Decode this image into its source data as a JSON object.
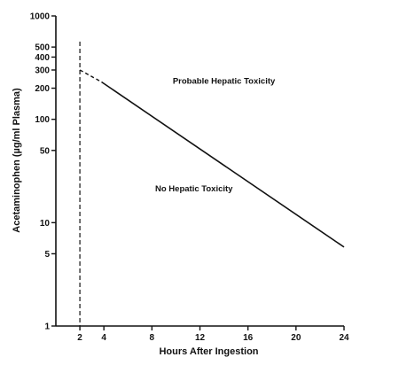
{
  "chart_data": {
    "type": "line",
    "xlabel": "Hours After Ingestion",
    "ylabel": "Acetaminophen (µg/ml Plasma)",
    "y_scale": "log",
    "xlim": [
      0,
      24
    ],
    "ylim": [
      1,
      1000
    ],
    "x_ticks": [
      {
        "value": 2,
        "label": "2"
      },
      {
        "value": 4,
        "label": "4"
      },
      {
        "value": 8,
        "label": "8"
      },
      {
        "value": 12,
        "label": "12"
      },
      {
        "value": 16,
        "label": "16"
      },
      {
        "value": 20,
        "label": "20"
      },
      {
        "value": 24,
        "label": "24"
      }
    ],
    "y_ticks": [
      {
        "value": 1,
        "label": "1"
      },
      {
        "value": 5,
        "label": "5"
      },
      {
        "value": 10,
        "label": "10"
      },
      {
        "value": 50,
        "label": "50"
      },
      {
        "value": 100,
        "label": "100"
      },
      {
        "value": 200,
        "label": "200"
      },
      {
        "value": 300,
        "label": "300"
      },
      {
        "value": 400,
        "label": "400"
      },
      {
        "value": 500,
        "label": "500"
      },
      {
        "value": 1000,
        "label": "1000"
      }
    ],
    "series": [
      {
        "style": "solid",
        "x": [
          3.8,
          24
        ],
        "y": [
          230,
          5.8
        ]
      },
      {
        "style": "dashed",
        "x": [
          2,
          3.8
        ],
        "y": [
          300,
          230
        ]
      }
    ],
    "reference_lines": [
      {
        "axis": "x",
        "value": 2,
        "style": "dashed"
      }
    ],
    "annotations": [
      {
        "text": "Probable Hepatic Toxicity",
        "x": 14,
        "y": 220
      },
      {
        "text": "No Hepatic Toxicity",
        "x": 11.5,
        "y": 20
      }
    ],
    "grid": false
  }
}
